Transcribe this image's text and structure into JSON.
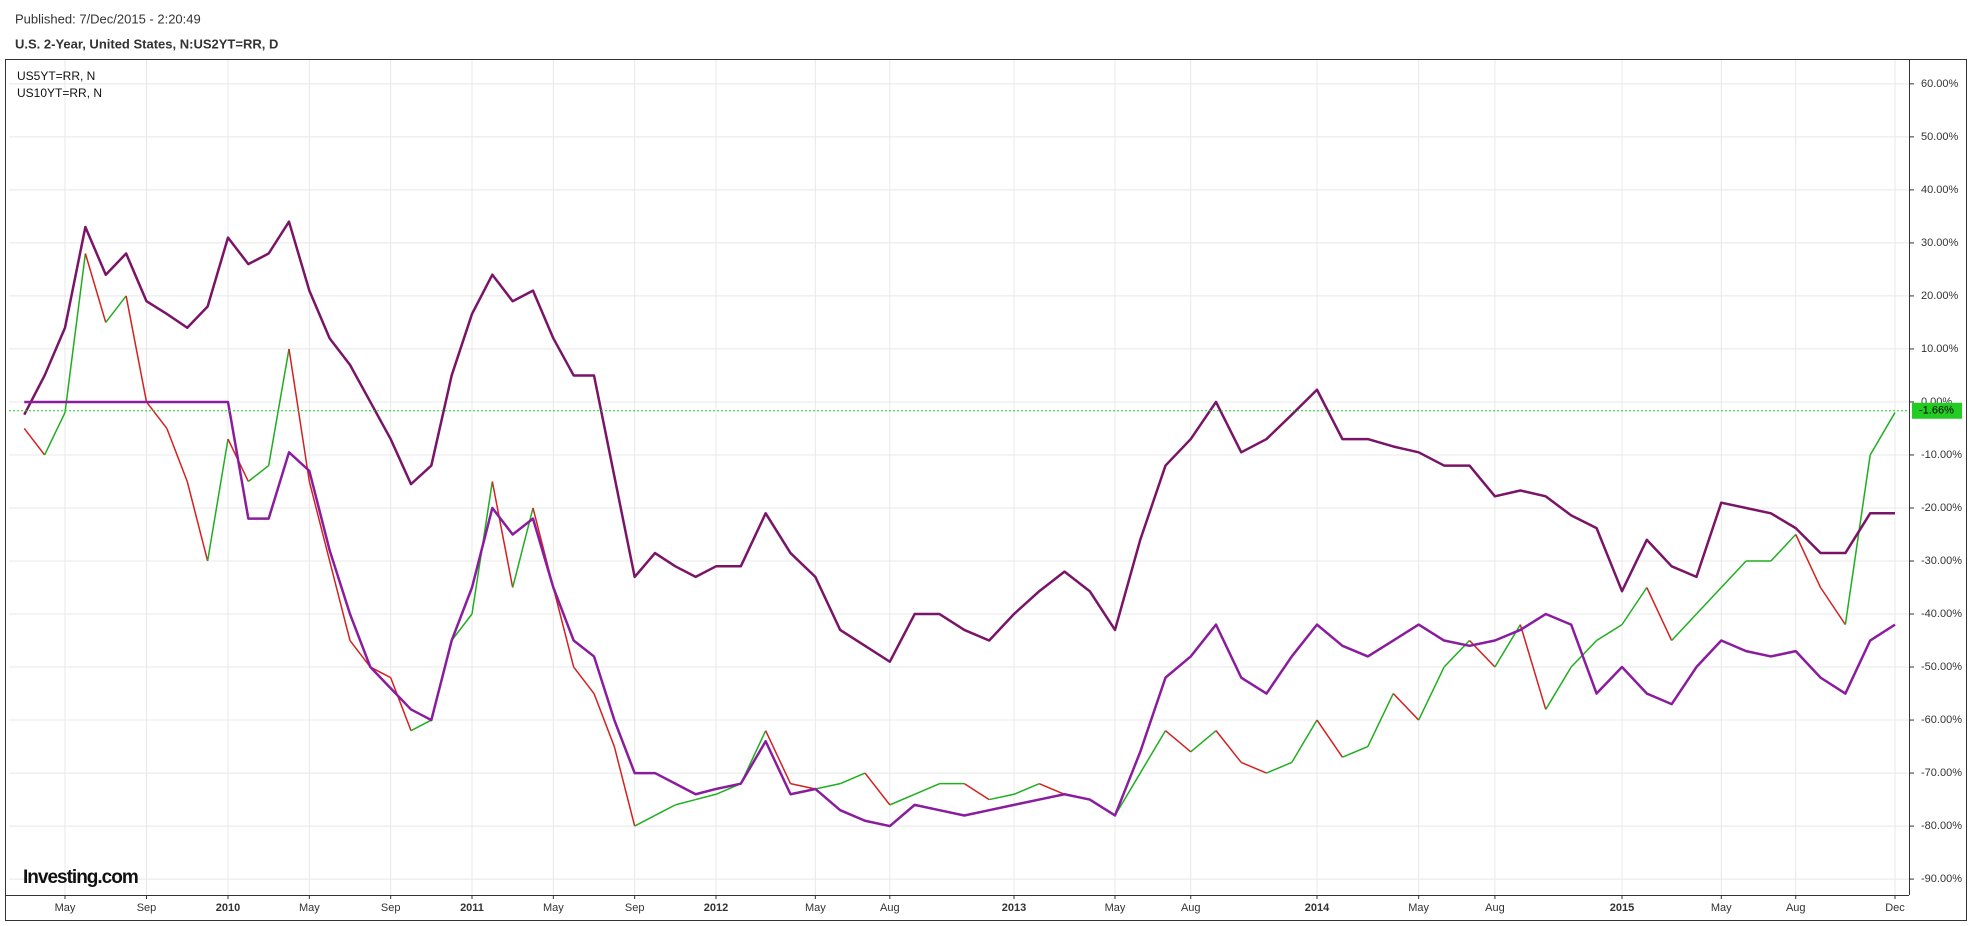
{
  "header": {
    "published": "Published: 7/Dec/2015 - 2:20:49",
    "title": "U.S. 2-Year, United States, N:US2YT=RR, D"
  },
  "logo": "Investing.com",
  "chart_data": {
    "type": "line",
    "x": [
      "2009-03",
      "2009-04",
      "2009-05",
      "2009-06",
      "2009-07",
      "2009-08",
      "2009-09",
      "2009-10",
      "2009-11",
      "2009-12",
      "2010-01",
      "2010-02",
      "2010-03",
      "2010-04",
      "2010-05",
      "2010-06",
      "2010-07",
      "2010-08",
      "2010-09",
      "2010-10",
      "2010-11",
      "2010-12",
      "2011-01",
      "2011-02",
      "2011-03",
      "2011-04",
      "2011-05",
      "2011-06",
      "2011-07",
      "2011-08",
      "2011-09",
      "2011-10",
      "2011-11",
      "2011-12",
      "2012-01",
      "2012-02",
      "2012-03",
      "2012-04",
      "2012-05",
      "2012-06",
      "2012-07",
      "2012-08",
      "2012-09",
      "2012-10",
      "2012-11",
      "2012-12",
      "2013-01",
      "2013-02",
      "2013-03",
      "2013-04",
      "2013-05",
      "2013-06",
      "2013-07",
      "2013-08",
      "2013-09",
      "2013-10",
      "2013-11",
      "2013-12",
      "2014-01",
      "2014-02",
      "2014-03",
      "2014-04",
      "2014-05",
      "2014-06",
      "2014-07",
      "2014-08",
      "2014-09",
      "2014-10",
      "2014-11",
      "2014-12",
      "2015-01",
      "2015-02",
      "2015-03",
      "2015-04",
      "2015-05",
      "2015-06",
      "2015-07",
      "2015-08",
      "2015-09",
      "2015-10",
      "2015-11",
      "2015-12"
    ],
    "main": {
      "up_color": "#1fae1f",
      "down_color": "#d42020",
      "values": [
        -5,
        -10,
        -2,
        28,
        15,
        20,
        0,
        -5,
        -15,
        -30,
        -7,
        -15,
        -12,
        10,
        -15,
        -30,
        -45,
        -50,
        -52,
        -62,
        -60,
        -45,
        -40,
        -15,
        -35,
        -20,
        -35,
        -50,
        -55,
        -65,
        -80,
        -78,
        -76,
        -75,
        -74,
        -72,
        -62,
        -72,
        -73,
        -72,
        -70,
        -76,
        -74,
        -72,
        -72,
        -75,
        -74,
        -72,
        -74,
        -75,
        -78,
        -70,
        -62,
        -66,
        -62,
        -68,
        -70,
        -68,
        -60,
        -67,
        -65,
        -55,
        -60,
        -50,
        -45,
        -50,
        -42,
        -58,
        -50,
        -45,
        -42,
        -35,
        -45,
        -40,
        -35,
        -30,
        -30,
        -25,
        -35,
        -42,
        -10,
        -2
      ]
    },
    "series": [
      {
        "name": "US5YT=RR, N",
        "color": "#7a1466",
        "values": [
          -2.4,
          5,
          14,
          33,
          24,
          28,
          19,
          16.6,
          14,
          18,
          31,
          26,
          28,
          34,
          21,
          12,
          7,
          0,
          -7,
          -15.5,
          -12,
          5,
          16.6,
          24,
          19,
          21,
          12,
          5,
          5,
          -14,
          -33,
          -28.5,
          -31,
          -33,
          -31,
          -31,
          -21,
          -28.5,
          -33,
          -43,
          -46,
          -49,
          -40,
          -40,
          -43,
          -45,
          -40,
          -35.7,
          -32,
          -35.7,
          -43,
          -26,
          -12,
          -7,
          0,
          -9.5,
          -7,
          -2.4,
          2.3,
          -7,
          -7,
          -8.4,
          -9.5,
          -12,
          -12,
          -17.8,
          -16.7,
          -17.8,
          -21.4,
          -23.8,
          -35.7,
          -26,
          -31,
          -33,
          -19,
          -20,
          -21,
          -23.8,
          -28.5,
          -28.5,
          -21,
          -21
        ]
      },
      {
        "name": "US10YT=RR, N",
        "color": "#8a1c9e",
        "values": [
          0,
          0,
          0,
          0,
          0,
          0,
          0,
          0,
          0,
          0,
          0,
          -22,
          -22,
          -9.5,
          -13,
          -28,
          -40,
          -50,
          -54,
          -58,
          -60,
          -45,
          -35,
          -20,
          -25,
          -22,
          -35,
          -45,
          -48,
          -60,
          -70,
          -70,
          -72,
          -74,
          -73,
          -72,
          -64,
          -74,
          -73,
          -77,
          -79,
          -80,
          -76,
          -77,
          -78,
          -77,
          -76,
          -75,
          -74,
          -75,
          -78,
          -66,
          -52,
          -48,
          -42,
          -52,
          -55,
          -48,
          -42,
          -46,
          -48,
          -45,
          -42,
          -45,
          -46,
          -45,
          -43,
          -40,
          -42,
          -55,
          -50,
          -55,
          -57,
          -50,
          -45,
          -47,
          -48,
          -47,
          -52,
          -55,
          -45,
          -42
        ]
      }
    ],
    "last_value": {
      "value": -1.66,
      "label": "-1.66%",
      "color": "#22cc22"
    },
    "ylim": [
      -93,
      64.5
    ],
    "yticks": [
      {
        "value": 60,
        "label": "60.00%"
      },
      {
        "value": 50,
        "label": "50.00%"
      },
      {
        "value": 40,
        "label": "40.00%"
      },
      {
        "value": 30,
        "label": "30.00%"
      },
      {
        "value": 20,
        "label": "20.00%"
      },
      {
        "value": 10,
        "label": "10.00%"
      },
      {
        "value": 0,
        "label": "0.00%"
      },
      {
        "value": -10,
        "label": "-10.00%"
      },
      {
        "value": -20,
        "label": "-20.00%"
      },
      {
        "value": -30,
        "label": "-30.00%"
      },
      {
        "value": -40,
        "label": "-40.00%"
      },
      {
        "value": -50,
        "label": "-50.00%"
      },
      {
        "value": -60,
        "label": "-60.00%"
      },
      {
        "value": -70,
        "label": "-70.00%"
      },
      {
        "value": -80,
        "label": "-80.00%"
      },
      {
        "value": -90,
        "label": "-90.00%"
      }
    ],
    "xticks": [
      {
        "value": "2009-05",
        "label": "May"
      },
      {
        "value": "2009-09",
        "label": "Sep"
      },
      {
        "value": "2010-01",
        "label": "2010"
      },
      {
        "value": "2010-05",
        "label": "May"
      },
      {
        "value": "2010-09",
        "label": "Sep"
      },
      {
        "value": "2011-01",
        "label": "2011"
      },
      {
        "value": "2011-05",
        "label": "May"
      },
      {
        "value": "2011-09",
        "label": "Sep"
      },
      {
        "value": "2012-01",
        "label": "2012"
      },
      {
        "value": "2012-05",
        "label": "May"
      },
      {
        "value": "2012-08",
        "label": "Aug"
      },
      {
        "value": "2013-01",
        "label": "2013"
      },
      {
        "value": "2013-05",
        "label": "May"
      },
      {
        "value": "2013-08",
        "label": "Aug"
      },
      {
        "value": "2014-01",
        "label": "2014"
      },
      {
        "value": "2014-05",
        "label": "May"
      },
      {
        "value": "2014-08",
        "label": "Aug"
      },
      {
        "value": "2015-01",
        "label": "2015"
      },
      {
        "value": "2015-05",
        "label": "May"
      },
      {
        "value": "2015-08",
        "label": "Aug"
      },
      {
        "value": "2015-12",
        "label": "Dec"
      }
    ],
    "grid": true
  }
}
